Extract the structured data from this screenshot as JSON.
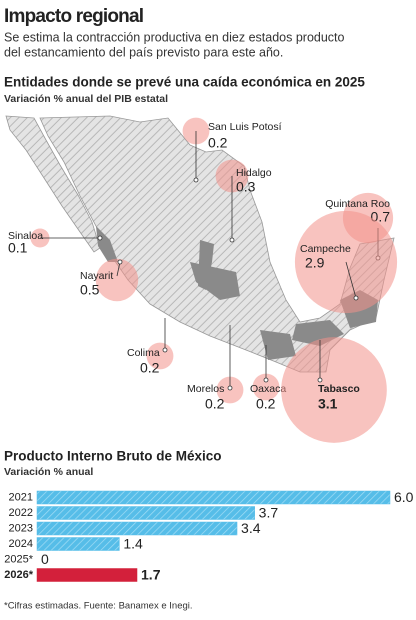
{
  "header": {
    "title": "Impacto regional",
    "subtitle": [
      "Se estima la contracción productiva en diez estados producto",
      "del estancamiento del país previsto para este año."
    ]
  },
  "map": {
    "title": "Entidades donde se prevé una caída económica en 2025",
    "subtitle": "Variación % anual del PIB estatal",
    "color": "#f2928a",
    "states": [
      {
        "name": "San Luis Potosí",
        "value": 0.2
      },
      {
        "name": "Hidalgo",
        "value": 0.3
      },
      {
        "name": "Quintana Roo",
        "value": 0.7
      },
      {
        "name": "Sinaloa",
        "value": 0.1
      },
      {
        "name": "Nayarit",
        "value": 0.5
      },
      {
        "name": "Campeche",
        "value": 2.9
      },
      {
        "name": "Colima",
        "value": 0.2
      },
      {
        "name": "Morelos",
        "value": 0.2
      },
      {
        "name": "Oaxaca",
        "value": 0.2
      },
      {
        "name": "Tabasco",
        "value": 3.1
      }
    ]
  },
  "chart_data": {
    "type": "bar",
    "orientation": "horizontal",
    "title": "Producto Interno Bruto de México",
    "subtitle": "Variación % anual",
    "categories": [
      "2021",
      "2022",
      "2023",
      "2024",
      "2025*",
      "2026*"
    ],
    "values": [
      6.0,
      3.7,
      3.4,
      1.4,
      0,
      1.7
    ],
    "value_labels": [
      "6.0",
      "3.7",
      "3.4",
      "1.4",
      "0",
      "1.7"
    ],
    "colors": [
      "#56bde8",
      "#56bde8",
      "#56bde8",
      "#56bde8",
      "#56bde8",
      "#d3203b"
    ],
    "xlim": [
      0,
      6
    ]
  },
  "footnote": "*Cifras estimadas. Fuente: Banamex e Inegi."
}
